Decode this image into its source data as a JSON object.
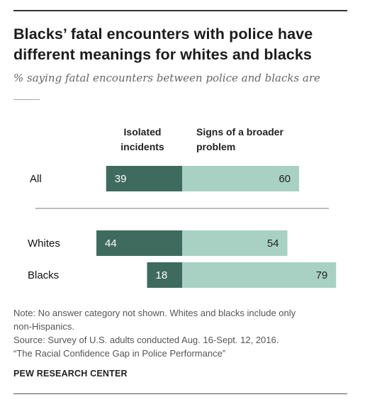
{
  "header": {
    "title": "Blacks’ fatal encounters with police have different meanings for whites and blacks",
    "subtitle": "% saying fatal encounters between police and blacks are _____"
  },
  "chart_data": {
    "type": "bar",
    "orientation": "horizontal",
    "stacked": "diverging",
    "categories": [
      "All",
      "Whites",
      "Blacks"
    ],
    "groups": [
      [
        "All"
      ],
      [
        "Whites",
        "Blacks"
      ]
    ],
    "series": [
      {
        "name": "Isolated incidents",
        "values": [
          39,
          44,
          18
        ],
        "color": "#3f6b5e"
      },
      {
        "name": "Signs of a broader problem",
        "values": [
          60,
          54,
          79
        ],
        "color": "#a8d1c3"
      }
    ],
    "column_headers": [
      [
        "Isolated",
        "incidents"
      ],
      [
        "Signs of a broader",
        "problem"
      ]
    ],
    "value_label_colors": [
      "#ffffff",
      "#222222"
    ]
  },
  "footer": {
    "note_lines": [
      "Note: No answer category not shown. Whites and blacks include only",
      "non-Hispanics.",
      "Source: Survey of U.S. adults conducted Aug. 16-Sept. 12, 2016.",
      "“The Racial Confidence Gap in Police Performance”"
    ],
    "brand": "PEW RESEARCH CENTER"
  }
}
